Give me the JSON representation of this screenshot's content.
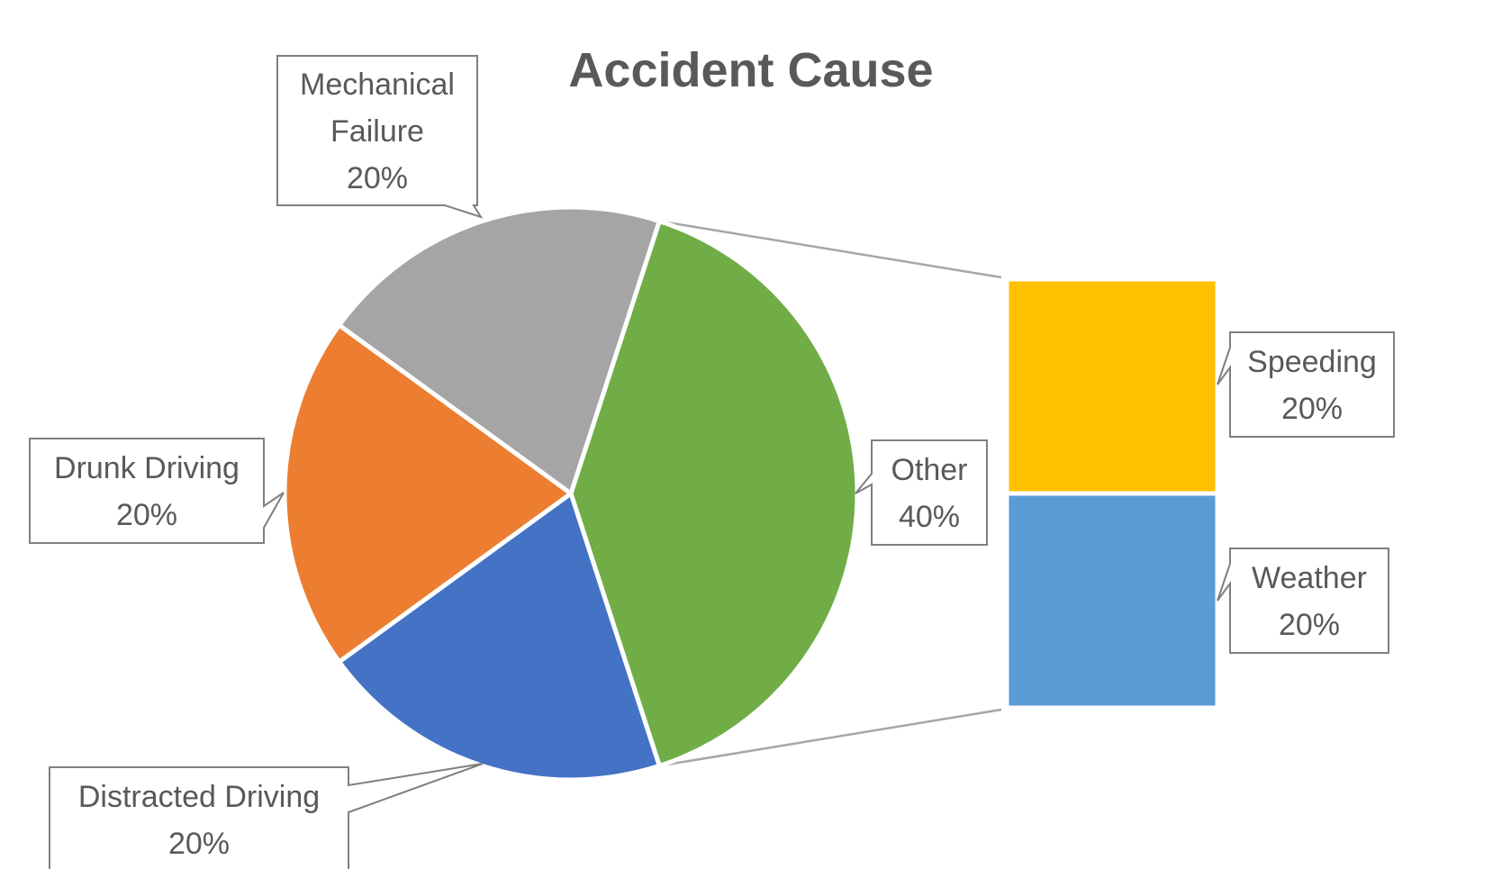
{
  "chart_data": {
    "type": "pie",
    "subtype": "pie-of-pie (bar of pie)",
    "title": "Accident Cause",
    "slices": [
      {
        "label": "Other",
        "value": 40,
        "value_label": "40%",
        "color": "#70AD47"
      },
      {
        "label": "Distracted Driving",
        "value": 20,
        "value_label": "20%",
        "color": "#4472C4"
      },
      {
        "label": "Drunk Driving",
        "value": 20,
        "value_label": "20%",
        "color": "#ED7D31"
      },
      {
        "label": "Mechanical Failure",
        "value": 20,
        "value_label": "20%",
        "color": "#A5A5A5"
      }
    ],
    "breakdown": {
      "of": "Other",
      "items": [
        {
          "label": "Speeding",
          "value": 20,
          "value_label": "20%",
          "color": "#FFC000"
        },
        {
          "label": "Weather",
          "value": 20,
          "value_label": "20%",
          "color": "#5B9BD5"
        }
      ]
    },
    "legend": "none",
    "data_labels": "callouts"
  }
}
